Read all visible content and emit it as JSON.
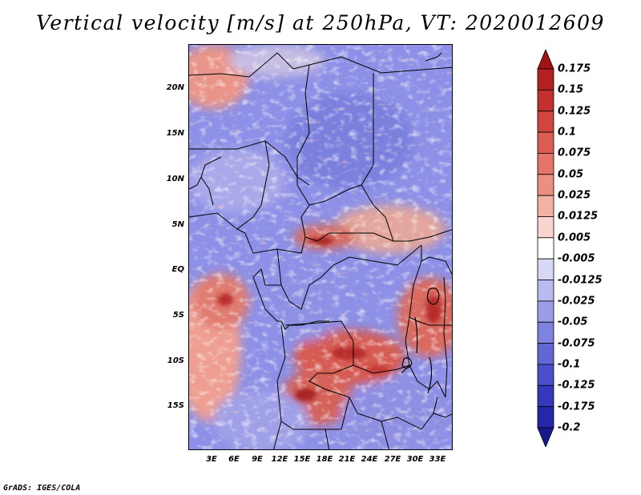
{
  "title": "Vertical velocity [m/s] at 250hPa, VT: 2020012609",
  "credit": "GrADS: IGES/COLA",
  "map": {
    "variable": "Vertical velocity",
    "units": "m/s",
    "level": "250hPa",
    "valid_time": "2020012609",
    "lat_labels": [
      "20N",
      "15N",
      "10N",
      "5N",
      "EQ",
      "5S",
      "10S",
      "15S"
    ],
    "lon_labels": [
      "3E",
      "6E",
      "9E",
      "12E",
      "15E",
      "18E",
      "21E",
      "24E",
      "27E",
      "30E",
      "33E"
    ]
  },
  "colorbar": {
    "labels": [
      "0.175",
      "0.15",
      "0.125",
      "0.1",
      "0.075",
      "0.05",
      "0.025",
      "0.0125",
      "0.005",
      "-0.005",
      "-0.0125",
      "-0.025",
      "-0.05",
      "-0.075",
      "-0.1",
      "-0.125",
      "-0.175",
      "-0.2"
    ],
    "colors": [
      "#a01416",
      "#b22022",
      "#c4302e",
      "#d0463f",
      "#da5c52",
      "#e47568",
      "#ec8f82",
      "#f3b0a6",
      "#f9d3cd",
      "#ffffff",
      "#d6d8f6",
      "#b8baf0",
      "#9a9ee8",
      "#7f83e0",
      "#6367d6",
      "#4b4ecb",
      "#3538bc",
      "#2527a8",
      "#18198f"
    ]
  }
}
